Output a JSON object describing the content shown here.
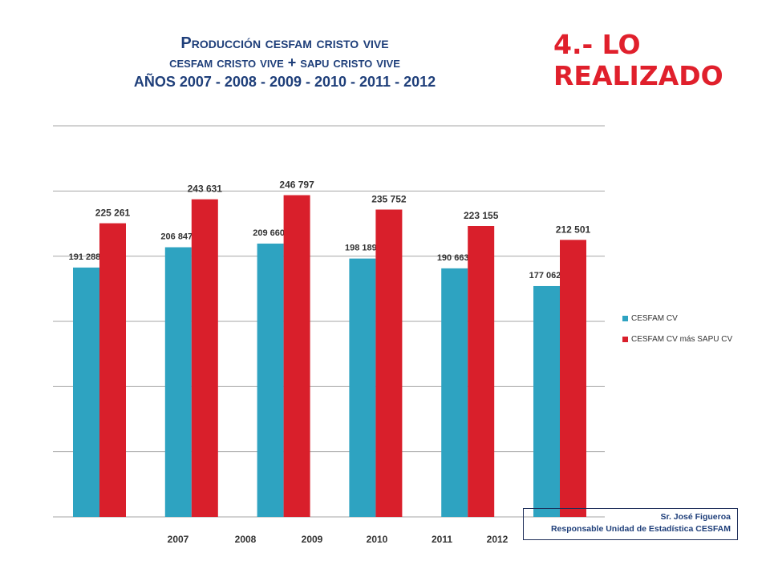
{
  "header": {
    "title_line1": "Producción cesfam cristo vive",
    "title_line2": "cesfam cristo vive + sapu cristo vive",
    "title_line3": "AÑOS 2007 - 2008 - 2009 - 2010 - 2011 - 2012",
    "headline": "4.- LO REALIZADO"
  },
  "credit": {
    "name": "Sr. José Figueroa",
    "role": "Responsable Unidad de Estadística CESFAM"
  },
  "colors": {
    "series1": "#2ea3c1",
    "series2": "#d91f2b",
    "grid": "#a6a6a6",
    "title": "#1f3f7a",
    "headline": "#e0202c"
  },
  "chart_data": {
    "type": "bar",
    "categories": [
      "2007",
      "2008",
      "2009",
      "2010",
      "2011",
      "2012"
    ],
    "series": [
      {
        "name": "CESFAM CV",
        "values": [
          191288,
          206847,
          209660,
          198189,
          190663,
          177062
        ],
        "labels": [
          "191 288",
          "206 847",
          "209 660",
          "198 189",
          "190 663",
          "177 062"
        ]
      },
      {
        "name": "CESFAM CV más SAPU CV",
        "values": [
          225261,
          243631,
          246797,
          235752,
          223155,
          212501
        ],
        "labels": [
          "225 261",
          "243 631",
          "246 797",
          "235 752",
          "223 155",
          "212 501"
        ]
      }
    ],
    "ylim": [
      0,
      300000
    ],
    "grid": true,
    "legend": "right",
    "title": "Producción cesfam cristo vive / cesfam cristo vive + sapu cristo vive / AÑOS 2007 - 2008 - 2009 - 2010 - 2011 - 2012"
  }
}
